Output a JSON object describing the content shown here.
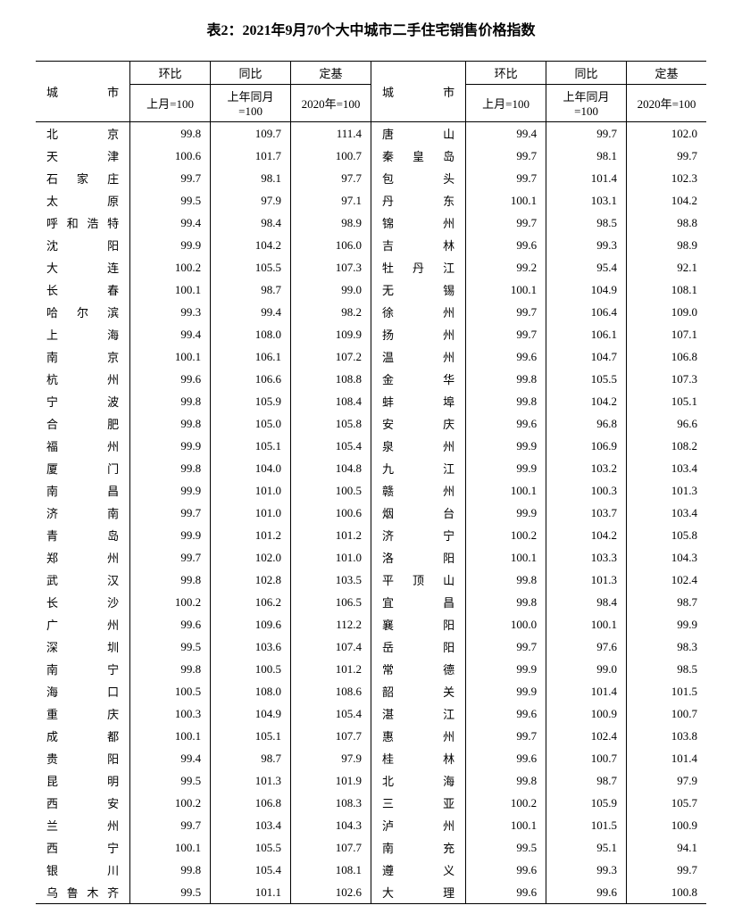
{
  "title": "表2：2021年9月70个大中城市二手住宅销售价格指数",
  "headers": {
    "city": "城市",
    "mom": "环比",
    "yoy": "同比",
    "base": "定基",
    "mom_sub": "上月=100",
    "yoy_sub": "上年同月=100",
    "base_sub": "2020年=100"
  },
  "font": {
    "title_size_pt": 16,
    "body_size_pt": 13,
    "family": "SimSun"
  },
  "colors": {
    "text": "#000000",
    "background": "#ffffff",
    "border": "#000000"
  },
  "left_rows": [
    {
      "city": "北京",
      "mom": "99.8",
      "yoy": "109.7",
      "base": "111.4"
    },
    {
      "city": "天津",
      "mom": "100.6",
      "yoy": "101.7",
      "base": "100.7"
    },
    {
      "city": "石家庄",
      "mom": "99.7",
      "yoy": "98.1",
      "base": "97.7"
    },
    {
      "city": "太原",
      "mom": "99.5",
      "yoy": "97.9",
      "base": "97.1"
    },
    {
      "city": "呼和浩特",
      "mom": "99.4",
      "yoy": "98.4",
      "base": "98.9"
    },
    {
      "city": "沈阳",
      "mom": "99.9",
      "yoy": "104.2",
      "base": "106.0"
    },
    {
      "city": "大连",
      "mom": "100.2",
      "yoy": "105.5",
      "base": "107.3"
    },
    {
      "city": "长春",
      "mom": "100.1",
      "yoy": "98.7",
      "base": "99.0"
    },
    {
      "city": "哈尔滨",
      "mom": "99.3",
      "yoy": "99.4",
      "base": "98.2"
    },
    {
      "city": "上海",
      "mom": "99.4",
      "yoy": "108.0",
      "base": "109.9"
    },
    {
      "city": "南京",
      "mom": "100.1",
      "yoy": "106.1",
      "base": "107.2"
    },
    {
      "city": "杭州",
      "mom": "99.6",
      "yoy": "106.6",
      "base": "108.8"
    },
    {
      "city": "宁波",
      "mom": "99.8",
      "yoy": "105.9",
      "base": "108.4"
    },
    {
      "city": "合肥",
      "mom": "99.8",
      "yoy": "105.0",
      "base": "105.8"
    },
    {
      "city": "福州",
      "mom": "99.9",
      "yoy": "105.1",
      "base": "105.4"
    },
    {
      "city": "厦门",
      "mom": "99.8",
      "yoy": "104.0",
      "base": "104.8"
    },
    {
      "city": "南昌",
      "mom": "99.9",
      "yoy": "101.0",
      "base": "100.5"
    },
    {
      "city": "济南",
      "mom": "99.7",
      "yoy": "101.0",
      "base": "100.6"
    },
    {
      "city": "青岛",
      "mom": "99.9",
      "yoy": "101.2",
      "base": "101.2"
    },
    {
      "city": "郑州",
      "mom": "99.7",
      "yoy": "102.0",
      "base": "101.0"
    },
    {
      "city": "武汉",
      "mom": "99.8",
      "yoy": "102.8",
      "base": "103.5"
    },
    {
      "city": "长沙",
      "mom": "100.2",
      "yoy": "106.2",
      "base": "106.5"
    },
    {
      "city": "广州",
      "mom": "99.6",
      "yoy": "109.6",
      "base": "112.2"
    },
    {
      "city": "深圳",
      "mom": "99.5",
      "yoy": "103.6",
      "base": "107.4"
    },
    {
      "city": "南宁",
      "mom": "99.8",
      "yoy": "100.5",
      "base": "101.2"
    },
    {
      "city": "海口",
      "mom": "100.5",
      "yoy": "108.0",
      "base": "108.6"
    },
    {
      "city": "重庆",
      "mom": "100.3",
      "yoy": "104.9",
      "base": "105.4"
    },
    {
      "city": "成都",
      "mom": "100.1",
      "yoy": "105.1",
      "base": "107.7"
    },
    {
      "city": "贵阳",
      "mom": "99.4",
      "yoy": "98.7",
      "base": "97.9"
    },
    {
      "city": "昆明",
      "mom": "99.5",
      "yoy": "101.3",
      "base": "101.9"
    },
    {
      "city": "西安",
      "mom": "100.2",
      "yoy": "106.8",
      "base": "108.3"
    },
    {
      "city": "兰州",
      "mom": "99.7",
      "yoy": "103.4",
      "base": "104.3"
    },
    {
      "city": "西宁",
      "mom": "100.1",
      "yoy": "105.5",
      "base": "107.7"
    },
    {
      "city": "银川",
      "mom": "99.8",
      "yoy": "105.4",
      "base": "108.1"
    },
    {
      "city": "乌鲁木齐",
      "mom": "99.5",
      "yoy": "101.1",
      "base": "102.6"
    }
  ],
  "right_rows": [
    {
      "city": "唐山",
      "mom": "99.4",
      "yoy": "99.7",
      "base": "102.0"
    },
    {
      "city": "秦皇岛",
      "mom": "99.7",
      "yoy": "98.1",
      "base": "99.7"
    },
    {
      "city": "包头",
      "mom": "99.7",
      "yoy": "101.4",
      "base": "102.3"
    },
    {
      "city": "丹东",
      "mom": "100.1",
      "yoy": "103.1",
      "base": "104.2"
    },
    {
      "city": "锦州",
      "mom": "99.7",
      "yoy": "98.5",
      "base": "98.8"
    },
    {
      "city": "吉林",
      "mom": "99.6",
      "yoy": "99.3",
      "base": "98.9"
    },
    {
      "city": "牡丹江",
      "mom": "99.2",
      "yoy": "95.4",
      "base": "92.1"
    },
    {
      "city": "无锡",
      "mom": "100.1",
      "yoy": "104.9",
      "base": "108.1"
    },
    {
      "city": "徐州",
      "mom": "99.7",
      "yoy": "106.4",
      "base": "109.0"
    },
    {
      "city": "扬州",
      "mom": "99.7",
      "yoy": "106.1",
      "base": "107.1"
    },
    {
      "city": "温州",
      "mom": "99.6",
      "yoy": "104.7",
      "base": "106.8"
    },
    {
      "city": "金华",
      "mom": "99.8",
      "yoy": "105.5",
      "base": "107.3"
    },
    {
      "city": "蚌埠",
      "mom": "99.8",
      "yoy": "104.2",
      "base": "105.1"
    },
    {
      "city": "安庆",
      "mom": "99.6",
      "yoy": "96.8",
      "base": "96.6"
    },
    {
      "city": "泉州",
      "mom": "99.9",
      "yoy": "106.9",
      "base": "108.2"
    },
    {
      "city": "九江",
      "mom": "99.9",
      "yoy": "103.2",
      "base": "103.4"
    },
    {
      "city": "赣州",
      "mom": "100.1",
      "yoy": "100.3",
      "base": "101.3"
    },
    {
      "city": "烟台",
      "mom": "99.9",
      "yoy": "103.7",
      "base": "103.4"
    },
    {
      "city": "济宁",
      "mom": "100.2",
      "yoy": "104.2",
      "base": "105.8"
    },
    {
      "city": "洛阳",
      "mom": "100.1",
      "yoy": "103.3",
      "base": "104.3"
    },
    {
      "city": "平顶山",
      "mom": "99.8",
      "yoy": "101.3",
      "base": "102.4"
    },
    {
      "city": "宜昌",
      "mom": "99.8",
      "yoy": "98.4",
      "base": "98.7"
    },
    {
      "city": "襄阳",
      "mom": "100.0",
      "yoy": "100.1",
      "base": "99.9"
    },
    {
      "city": "岳阳",
      "mom": "99.7",
      "yoy": "97.6",
      "base": "98.3"
    },
    {
      "city": "常德",
      "mom": "99.9",
      "yoy": "99.0",
      "base": "98.5"
    },
    {
      "city": "韶关",
      "mom": "99.9",
      "yoy": "101.4",
      "base": "101.5"
    },
    {
      "city": "湛江",
      "mom": "99.6",
      "yoy": "100.9",
      "base": "100.7"
    },
    {
      "city": "惠州",
      "mom": "99.7",
      "yoy": "102.4",
      "base": "103.8"
    },
    {
      "city": "桂林",
      "mom": "99.6",
      "yoy": "100.7",
      "base": "101.4"
    },
    {
      "city": "北海",
      "mom": "99.8",
      "yoy": "98.7",
      "base": "97.9"
    },
    {
      "city": "三亚",
      "mom": "100.2",
      "yoy": "105.9",
      "base": "105.7"
    },
    {
      "city": "泸州",
      "mom": "100.1",
      "yoy": "101.5",
      "base": "100.9"
    },
    {
      "city": "南充",
      "mom": "99.5",
      "yoy": "95.1",
      "base": "94.1"
    },
    {
      "city": "遵义",
      "mom": "99.6",
      "yoy": "99.3",
      "base": "99.7"
    },
    {
      "city": "大理",
      "mom": "99.6",
      "yoy": "99.6",
      "base": "100.8"
    }
  ]
}
